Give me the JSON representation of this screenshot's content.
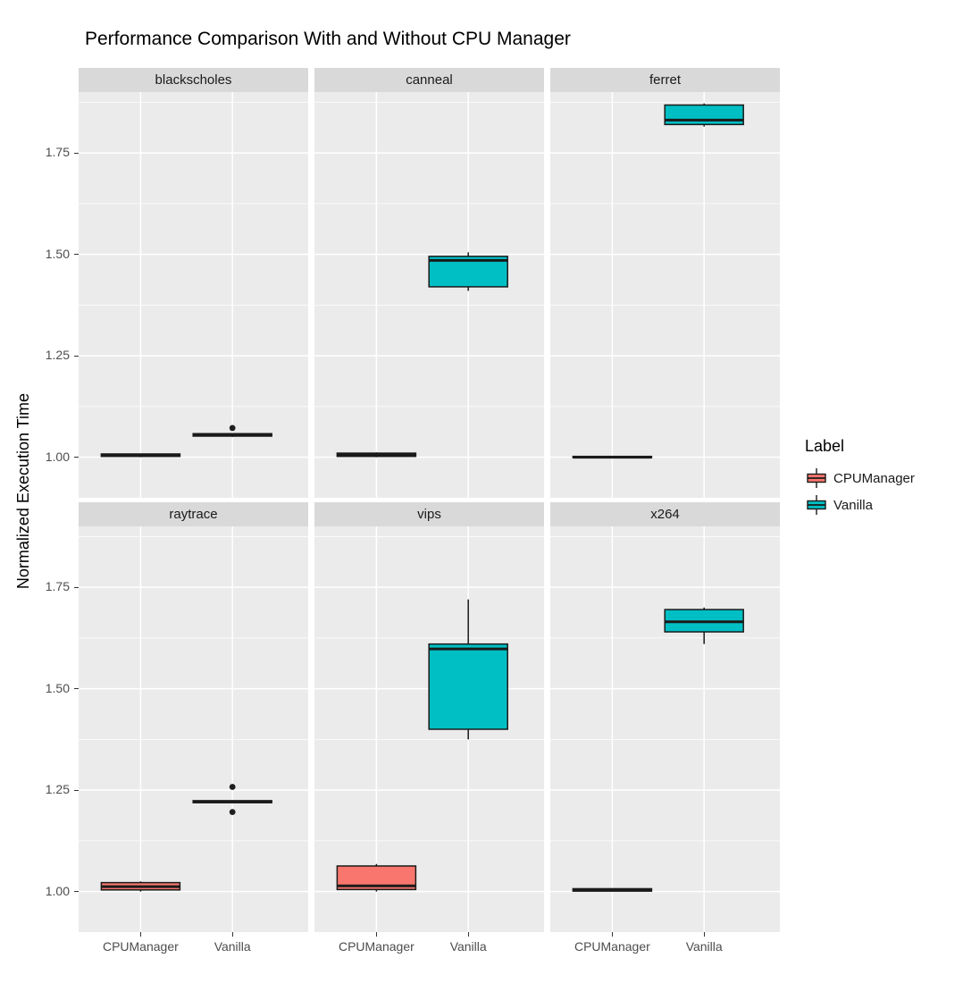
{
  "chart_data": {
    "type": "boxplot",
    "title": "Performance Comparison With and Without CPU Manager",
    "ylabel": "Normalized Execution Time",
    "xlabel": "",
    "ylim": [
      0.9,
      1.9
    ],
    "yticks": [
      1.0,
      1.25,
      1.5,
      1.75
    ],
    "ytick_labels": [
      "1.00",
      "1.25",
      "1.50",
      "1.75"
    ],
    "categories": [
      "CPUManager",
      "Vanilla"
    ],
    "grid": true,
    "legend_position": "right",
    "style": {
      "panel_bg": "#EBEBEB",
      "strip_bg": "#D9D9D9",
      "grid_color": "#FFFFFF",
      "box_stroke": "#1a1a1a"
    },
    "legend": {
      "title": "Label",
      "entries": [
        {
          "label": "CPUManager",
          "color": "#F8766D"
        },
        {
          "label": "Vanilla",
          "color": "#00BFC4"
        }
      ]
    },
    "facets": [
      {
        "name": "blackscholes",
        "boxes": [
          {
            "group": "CPUManager",
            "min": 1.0,
            "q1": 1.002,
            "median": 1.005,
            "q3": 1.008,
            "max": 1.009,
            "outliers": []
          },
          {
            "group": "Vanilla",
            "min": 1.05,
            "q1": 1.052,
            "median": 1.056,
            "q3": 1.058,
            "max": 1.059,
            "outliers": [
              1.072
            ]
          }
        ]
      },
      {
        "name": "canneal",
        "boxes": [
          {
            "group": "CPUManager",
            "min": 1.0,
            "q1": 1.002,
            "median": 1.006,
            "q3": 1.01,
            "max": 1.012,
            "outliers": []
          },
          {
            "group": "Vanilla",
            "min": 1.41,
            "q1": 1.42,
            "median": 1.485,
            "q3": 1.495,
            "max": 1.505,
            "outliers": []
          }
        ]
      },
      {
        "name": "ferret",
        "boxes": [
          {
            "group": "CPUManager",
            "min": 0.998,
            "q1": 0.999,
            "median": 1.0,
            "q3": 1.002,
            "max": 1.003,
            "outliers": []
          },
          {
            "group": "Vanilla",
            "min": 1.815,
            "q1": 1.82,
            "median": 1.831,
            "q3": 1.868,
            "max": 1.872,
            "outliers": []
          }
        ]
      },
      {
        "name": "raytrace",
        "boxes": [
          {
            "group": "CPUManager",
            "min": 1.0,
            "q1": 1.004,
            "median": 1.012,
            "q3": 1.022,
            "max": 1.025,
            "outliers": []
          },
          {
            "group": "Vanilla",
            "min": 1.218,
            "q1": 1.219,
            "median": 1.221,
            "q3": 1.224,
            "max": 1.225,
            "outliers": [
              1.258,
              1.196
            ]
          }
        ]
      },
      {
        "name": "vips",
        "boxes": [
          {
            "group": "CPUManager",
            "min": 1.0,
            "q1": 1.005,
            "median": 1.014,
            "q3": 1.063,
            "max": 1.068,
            "outliers": []
          },
          {
            "group": "Vanilla",
            "min": 1.375,
            "q1": 1.4,
            "median": 1.598,
            "q3": 1.61,
            "max": 1.72,
            "outliers": []
          }
        ]
      },
      {
        "name": "x264",
        "boxes": [
          {
            "group": "CPUManager",
            "min": 1.0,
            "q1": 1.001,
            "median": 1.004,
            "q3": 1.007,
            "max": 1.008,
            "outliers": []
          },
          {
            "group": "Vanilla",
            "min": 1.61,
            "q1": 1.64,
            "median": 1.665,
            "q3": 1.695,
            "max": 1.7,
            "outliers": []
          }
        ]
      }
    ]
  }
}
